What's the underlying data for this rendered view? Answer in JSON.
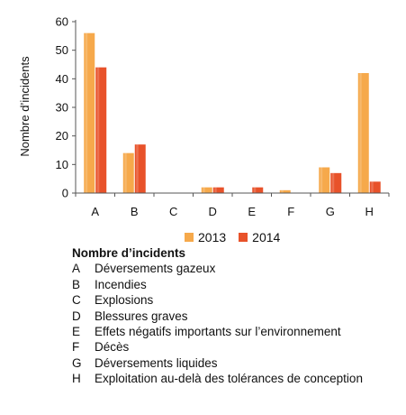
{
  "chart_data": {
    "type": "bar",
    "categories": [
      "A",
      "B",
      "C",
      "D",
      "E",
      "F",
      "G",
      "H"
    ],
    "series": [
      {
        "name": "2013",
        "values": [
          56,
          14,
          0,
          2,
          0,
          1,
          9,
          42
        ],
        "color": "#F6A94B"
      },
      {
        "name": "2014",
        "values": [
          44,
          17,
          0,
          2,
          2,
          0,
          7,
          4
        ],
        "color": "#E8522A"
      }
    ],
    "ylabel": "Nombre d’incidents",
    "ylim": [
      0,
      60
    ],
    "yticks": [
      0,
      10,
      20,
      30,
      40,
      50,
      60
    ],
    "grid": false,
    "legend_position": "bottom"
  },
  "legend": {
    "items": [
      {
        "label": "2013",
        "color": "#F6A94B"
      },
      {
        "label": "2014",
        "color": "#E8522A"
      }
    ]
  },
  "key": {
    "title": "Nombre d’incidents",
    "items": [
      {
        "letter": "A",
        "text": "Déversements gazeux"
      },
      {
        "letter": "B",
        "text": "Incendies"
      },
      {
        "letter": "C",
        "text": "Explosions"
      },
      {
        "letter": "D",
        "text": "Blessures graves"
      },
      {
        "letter": "E",
        "text": "Effets négatifs importants sur l’environnement"
      },
      {
        "letter": "F",
        "text": "Décès"
      },
      {
        "letter": "G",
        "text": "Déversements liquides"
      },
      {
        "letter": "H",
        "text": "Exploitation au-delà des tolérances de conception"
      }
    ]
  }
}
